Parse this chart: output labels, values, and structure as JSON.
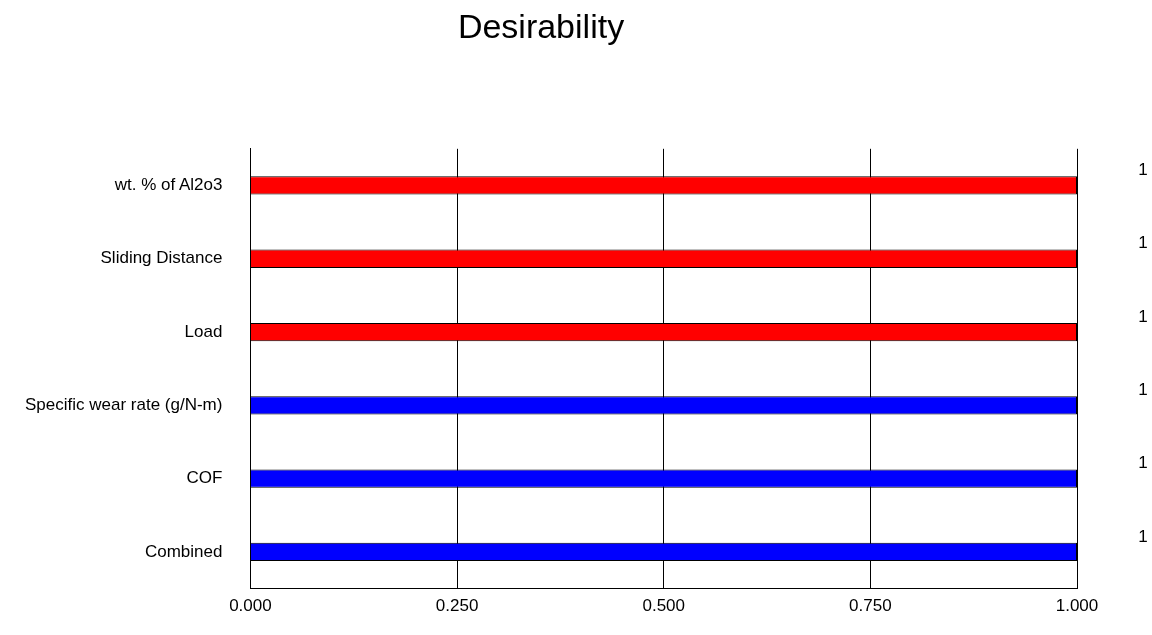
{
  "chart_data": {
    "type": "bar",
    "orientation": "horizontal",
    "title": "Desirability",
    "categories": [
      "wt. % of Al2o3",
      "Sliding Distance",
      "Load",
      "Specific wear rate (g/N-m)",
      "COF",
      "Combined"
    ],
    "values": [
      1,
      1,
      1,
      1,
      1,
      1
    ],
    "colors": [
      "#ff0000",
      "#ff0000",
      "#ff0000",
      "#0000ff",
      "#0000ff",
      "#0000ff"
    ],
    "xlim": [
      0,
      1
    ],
    "xticks": [
      {
        "value": 0,
        "label": "0.000"
      },
      {
        "value": 0.25,
        "label": "0.250"
      },
      {
        "value": 0.5,
        "label": "0.500"
      },
      {
        "value": 0.75,
        "label": "0.750"
      },
      {
        "value": 1,
        "label": "1.000"
      }
    ],
    "grid": "x",
    "legend": false,
    "data_labels": true
  }
}
